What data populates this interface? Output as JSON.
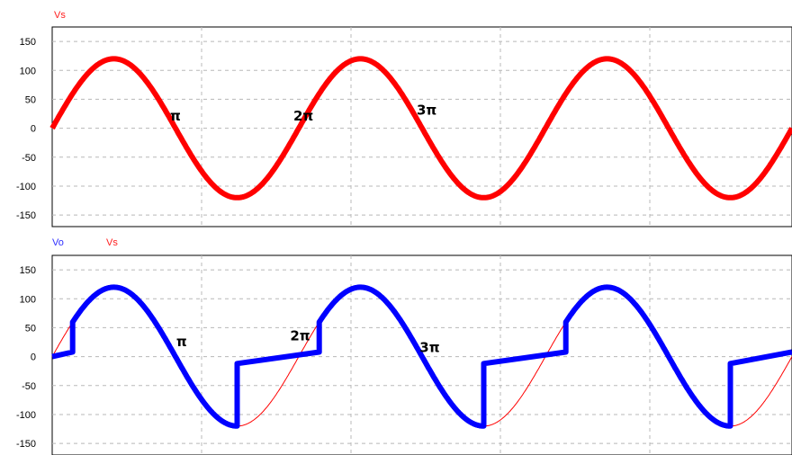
{
  "chart_data": [
    {
      "type": "line",
      "legend": [
        {
          "text": "Vs",
          "color": "#ff2020"
        }
      ],
      "ylim": [
        -170,
        175
      ],
      "yticks": [
        150,
        100,
        50,
        0,
        -50,
        -100,
        -150
      ],
      "grid": true,
      "annotations": [
        {
          "text": "π",
          "angle": 3.1416,
          "y": 10
        },
        {
          "text": "2π",
          "angle": 6.2832,
          "y": 10
        },
        {
          "text": "3π",
          "angle": 9.4248,
          "y": 20
        }
      ],
      "series": [
        {
          "name": "Vs",
          "color": "#ff0000",
          "style": "thick",
          "amplitude": 120,
          "phase_end": 18.85
        }
      ]
    },
    {
      "type": "line",
      "legend": [
        {
          "text": "Vo",
          "color": "#3030ff"
        },
        {
          "text": "Vs",
          "color": "#ff2020"
        }
      ],
      "ylim": [
        -170,
        175
      ],
      "yticks": [
        150,
        100,
        50,
        0,
        -50,
        -100,
        -150
      ],
      "grid": true,
      "annotations": [
        {
          "text": "π",
          "angle": 3.3,
          "y": 15
        },
        {
          "text": "2π",
          "angle": 6.2,
          "y": 25
        },
        {
          "text": "3π",
          "angle": 9.5,
          "y": 5
        }
      ],
      "series": [
        {
          "name": "Vs",
          "color": "#ff0000",
          "style": "thin",
          "amplitude": 120,
          "phase_end": 18.85
        },
        {
          "name": "Vo",
          "color": "#0000ff",
          "style": "thick",
          "amplitude": 120,
          "phase_end": 18.85,
          "firing_angle": 0.52,
          "off_level": 8,
          "off_start": -12
        }
      ]
    }
  ]
}
